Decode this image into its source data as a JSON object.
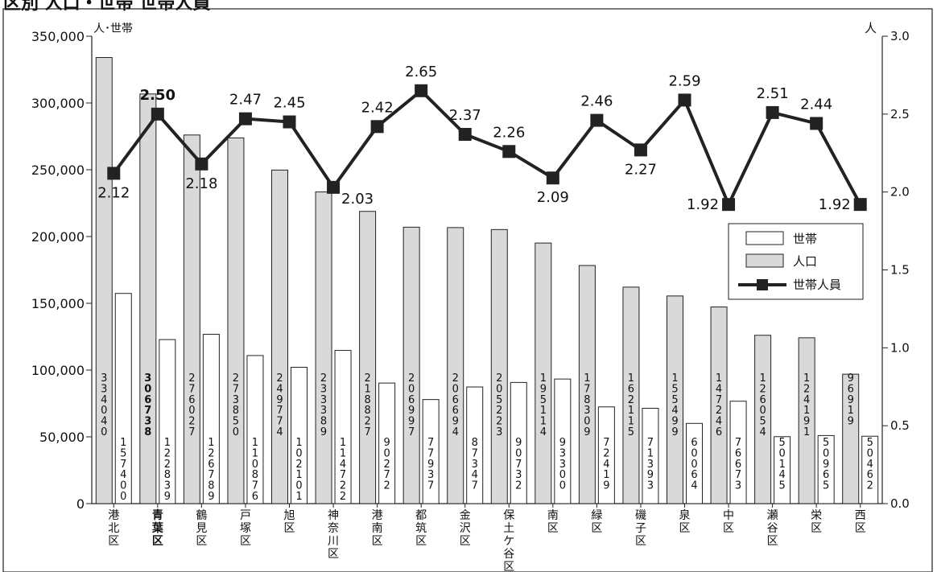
{
  "title": "区別 人口・世帯 世帯人員",
  "chart_data": {
    "type": "bar+line",
    "left_axis_unit": "人･世帯",
    "right_axis_unit": "人",
    "left_ticks": [
      "350,000",
      "300,000",
      "250,000",
      "200,000",
      "150,000",
      "100,000",
      "50,000",
      "0"
    ],
    "right_ticks": [
      "3.0",
      "2.5",
      "2.0",
      "1.5",
      "1.0",
      "0.5",
      "0.0"
    ],
    "left_ylim": [
      0,
      350000
    ],
    "right_ylim": [
      0,
      3.0
    ],
    "categories": [
      "港北区",
      "青葉区",
      "鶴見区",
      "戸塚区",
      "旭区",
      "神奈川区",
      "港南区",
      "都筑区",
      "金沢区",
      "保土ケ谷区",
      "南区",
      "緑区",
      "磯子区",
      "泉区",
      "中区",
      "瀬谷区",
      "栄区",
      "西区"
    ],
    "highlight_category": "青葉区",
    "series": [
      {
        "name": "人口",
        "kind": "bar",
        "color": "#d9d9d9",
        "values": [
          334040,
          306738,
          276027,
          273850,
          249774,
          233389,
          218827,
          206997,
          206694,
          205223,
          195114,
          178309,
          162115,
          155499,
          147246,
          126054,
          124191,
          96919
        ],
        "labels": [
          "334040",
          "306738",
          "276027",
          "273850",
          "249774",
          "233389",
          "218827",
          "206997",
          "206694",
          "205223",
          "195114",
          "178309",
          "162115",
          "155499",
          "147246",
          "126054",
          "124191",
          "96919"
        ]
      },
      {
        "name": "世帯",
        "kind": "bar",
        "color": "#ffffff",
        "values": [
          157400,
          122839,
          126789,
          110876,
          102101,
          114722,
          90272,
          77937,
          87347,
          90732,
          93300,
          72419,
          71393,
          60064,
          76673,
          50145,
          50965,
          50462
        ],
        "labels": [
          "157400",
          "122839",
          "126789",
          "110876",
          "102101",
          "114722",
          "90272",
          "77937",
          "87347",
          "90732",
          "93300",
          "72419",
          "71393",
          "60064",
          "76673",
          "50145",
          "50965",
          "50462"
        ]
      },
      {
        "name": "世帯人員",
        "kind": "line",
        "color": "#222222",
        "values": [
          2.12,
          2.5,
          2.18,
          2.47,
          2.45,
          2.03,
          2.42,
          2.65,
          2.37,
          2.26,
          2.09,
          2.46,
          2.27,
          2.59,
          1.92,
          2.51,
          2.44,
          1.92
        ],
        "labels": [
          "2.12",
          "2.50",
          "2.18",
          "2.47",
          "2.45",
          "2.03",
          "2.42",
          "2.65",
          "2.37",
          "2.26",
          "2.09",
          "2.46",
          "2.27",
          "2.59",
          "1.92",
          "2.51",
          "2.44",
          "1.92"
        ]
      }
    ],
    "legend": {
      "placement": "right",
      "items": [
        "世帯",
        "人口",
        "世帯人員"
      ]
    },
    "grid": false
  }
}
